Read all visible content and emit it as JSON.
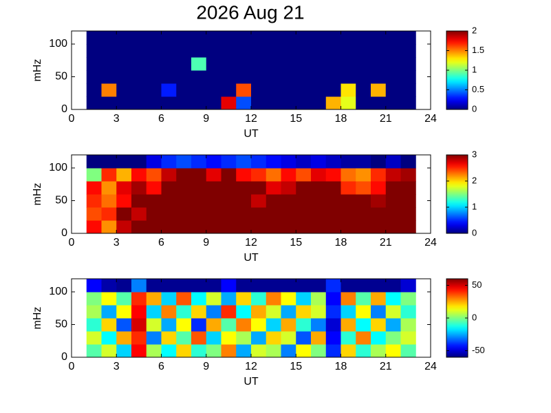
{
  "chart_data": [
    {
      "type": "heatmap",
      "title": "2026 Aug 21",
      "xlabel": "UT",
      "ylabel": "mHz",
      "x": [
        1.5,
        2.5,
        3.5,
        4.5,
        5.5,
        6.5,
        7.5,
        8.5,
        9.5,
        10.5,
        11.5,
        12.5,
        13.5,
        14.5,
        15.5,
        16.5,
        17.5,
        18.5,
        19.5,
        20.5,
        21.5,
        22.5
      ],
      "y": [
        10,
        30,
        50,
        70,
        90,
        110
      ],
      "z": [
        [
          0,
          0,
          0,
          0,
          0,
          0,
          0,
          0,
          0,
          1.8,
          0.4,
          0,
          0,
          0,
          0,
          0,
          1.4,
          1.2,
          0,
          0,
          0,
          0
        ],
        [
          0,
          1.5,
          0,
          0,
          0,
          0.3,
          0,
          0,
          0,
          0,
          1.6,
          0,
          0,
          0,
          0,
          0,
          0,
          1.3,
          0,
          1.4,
          0,
          0
        ],
        [
          0,
          0,
          0,
          0,
          0,
          0,
          0,
          0,
          0,
          0,
          0,
          0,
          0,
          0,
          0,
          0,
          0,
          0,
          0,
          0,
          0,
          0
        ],
        [
          0,
          0,
          0,
          0,
          0,
          0,
          0,
          0.9,
          0,
          0,
          0,
          0,
          0,
          0,
          0,
          0,
          0,
          0,
          0,
          0,
          0,
          0
        ],
        [
          0,
          0,
          0,
          0,
          0,
          0,
          0,
          0,
          0,
          0,
          0,
          0,
          0,
          0,
          0,
          0,
          0,
          0,
          0,
          0,
          0,
          0
        ],
        [
          0,
          0,
          0,
          0,
          0,
          0,
          0,
          0,
          0,
          0,
          0,
          0,
          0,
          0,
          0,
          0,
          0,
          0,
          0,
          0,
          0,
          0
        ]
      ],
      "xlim": [
        0,
        24
      ],
      "xticks": [
        0,
        3,
        6,
        9,
        12,
        15,
        18,
        21,
        24
      ],
      "ylim": [
        0,
        120
      ],
      "yticks": [
        0,
        50,
        100
      ],
      "clim": [
        0,
        2
      ],
      "cticks": [
        0,
        0.5,
        1,
        1.5,
        2
      ],
      "colormap": "jet"
    },
    {
      "type": "heatmap",
      "xlabel": "UT",
      "ylabel": "mHz",
      "x": [
        1.5,
        2.5,
        3.5,
        4.5,
        5.5,
        6.5,
        7.5,
        8.5,
        9.5,
        10.5,
        11.5,
        12.5,
        13.5,
        14.5,
        15.5,
        16.5,
        17.5,
        18.5,
        19.5,
        20.5,
        21.5,
        22.5
      ],
      "y": [
        10,
        30,
        50,
        70,
        90,
        110
      ],
      "z": [
        [
          2.6,
          2.2,
          2.8,
          3,
          3,
          3,
          3,
          3,
          3,
          3,
          3,
          3,
          3,
          3,
          3,
          3,
          3,
          3,
          3,
          3,
          3,
          3
        ],
        [
          2.4,
          2.5,
          3,
          2.8,
          3,
          3,
          3,
          3,
          3,
          3,
          3,
          3,
          3,
          3,
          3,
          3,
          3,
          3,
          3,
          3,
          3,
          3
        ],
        [
          2.5,
          2.3,
          2.6,
          3,
          3,
          3,
          3,
          3,
          3,
          3,
          3,
          2.8,
          3,
          3,
          3,
          3,
          3,
          3,
          3,
          2.9,
          3,
          3
        ],
        [
          2.6,
          2.2,
          2.7,
          2.9,
          2.6,
          3,
          3,
          3,
          3,
          3,
          3,
          3,
          2.7,
          2.8,
          3,
          3,
          3,
          2.5,
          2.4,
          2.6,
          3,
          3
        ],
        [
          1.5,
          2.5,
          2.1,
          2.6,
          2.4,
          2.8,
          3,
          3,
          2.7,
          3,
          2.6,
          2.5,
          2.3,
          2.6,
          2.4,
          2.7,
          2.6,
          2.3,
          2.2,
          2.5,
          2.8,
          2.9
        ],
        [
          0,
          0,
          0,
          0,
          0.3,
          0.5,
          0.6,
          0.5,
          0.4,
          0.5,
          0.6,
          0.5,
          0.4,
          0.3,
          0.2,
          0.3,
          0.2,
          0.1,
          0.1,
          0,
          0.2,
          0
        ]
      ],
      "xlim": [
        0,
        24
      ],
      "xticks": [
        0,
        3,
        6,
        9,
        12,
        15,
        18,
        21,
        24
      ],
      "ylim": [
        0,
        120
      ],
      "yticks": [
        0,
        50,
        100
      ],
      "clim": [
        0,
        3
      ],
      "cticks": [
        0,
        1,
        2,
        3
      ],
      "colormap": "jet"
    },
    {
      "type": "heatmap",
      "xlabel": "UT",
      "ylabel": "mHz",
      "x": [
        1.5,
        2.5,
        3.5,
        4.5,
        5.5,
        6.5,
        7.5,
        8.5,
        9.5,
        10.5,
        11.5,
        12.5,
        13.5,
        14.5,
        15.5,
        16.5,
        17.5,
        18.5,
        19.5,
        20.5,
        21.5,
        22.5
      ],
      "y": [
        10,
        30,
        50,
        70,
        90,
        110
      ],
      "z": [
        [
          -5,
          10,
          -20,
          45,
          5,
          -15,
          20,
          -10,
          0,
          30,
          -25,
          10,
          5,
          -30,
          15,
          0,
          -40,
          20,
          -10,
          5,
          15,
          -5
        ],
        [
          10,
          -15,
          25,
          40,
          -30,
          20,
          -5,
          35,
          -20,
          15,
          5,
          -25,
          20,
          10,
          -35,
          25,
          -45,
          -10,
          30,
          -15,
          0,
          10
        ],
        [
          -10,
          20,
          -35,
          50,
          10,
          -25,
          15,
          -40,
          25,
          -5,
          30,
          15,
          -20,
          25,
          -10,
          -30,
          -50,
          25,
          -15,
          20,
          -25,
          5
        ],
        [
          5,
          -25,
          15,
          45,
          -20,
          30,
          -10,
          20,
          -30,
          40,
          -15,
          25,
          10,
          -25,
          20,
          10,
          -40,
          -20,
          15,
          -30,
          10,
          -10
        ],
        [
          0,
          15,
          -5,
          40,
          25,
          -20,
          35,
          -15,
          10,
          -25,
          20,
          -10,
          30,
          15,
          -20,
          5,
          -45,
          30,
          -5,
          25,
          -15,
          0
        ],
        [
          -45,
          -55,
          -58,
          -30,
          -58,
          -58,
          -58,
          -58,
          -58,
          -45,
          -58,
          -58,
          -58,
          -58,
          -58,
          -58,
          -40,
          -58,
          -58,
          -58,
          -58,
          -50
        ]
      ],
      "xlim": [
        0,
        24
      ],
      "xticks": [
        0,
        3,
        6,
        9,
        12,
        15,
        18,
        21,
        24
      ],
      "ylim": [
        0,
        120
      ],
      "yticks": [
        0,
        50,
        100
      ],
      "clim": [
        -60,
        60
      ],
      "cticks": [
        -50,
        0,
        50
      ],
      "colormap": "jet"
    }
  ]
}
